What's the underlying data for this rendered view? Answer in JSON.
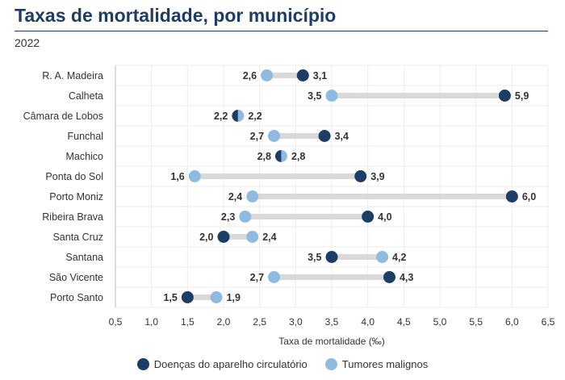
{
  "header": {
    "title": "Taxas de mortalidade, por município",
    "subtitle": "2022"
  },
  "colors": {
    "circulatory": "#1b3d66",
    "tumors": "#8fbbe0",
    "connector": "#d9d9d9",
    "grid": "#eeeeee"
  },
  "chart_data": {
    "type": "dumbbell",
    "xlabel": "Taxa de mortalidade (‰)",
    "xlim": [
      0.5,
      6.5
    ],
    "xticks": [
      0.5,
      1.0,
      1.5,
      2.0,
      2.5,
      3.0,
      3.5,
      4.0,
      4.5,
      5.0,
      5.5,
      6.0,
      6.5
    ],
    "xtick_labels": [
      "0,5",
      "1,0",
      "1,5",
      "2,0",
      "2,5",
      "3,0",
      "3,5",
      "4,0",
      "4,5",
      "5,0",
      "5,5",
      "6,0",
      "6,5"
    ],
    "grid": true,
    "legend_position": "bottom",
    "categories": [
      "R. A. Madeira",
      "Calheta",
      "Câmara de Lobos",
      "Funchal",
      "Machico",
      "Ponta do Sol",
      "Porto Moniz",
      "Ribeira Brava",
      "Santa Cruz",
      "Santana",
      "São Vicente",
      "Porto Santo"
    ],
    "series": [
      {
        "name": "Doenças do aparelho circulatório",
        "values": [
          3.1,
          5.9,
          2.2,
          3.4,
          2.8,
          3.9,
          6.0,
          4.0,
          2.0,
          3.5,
          4.3,
          1.5
        ],
        "labels": [
          "3,1",
          "5,9",
          "2,2",
          "3,4",
          "2,8",
          "3,9",
          "6,0",
          "4,0",
          "2,0",
          "3,5",
          "4,3",
          "1,5"
        ]
      },
      {
        "name": "Tumores malignos",
        "values": [
          2.6,
          3.5,
          2.2,
          2.7,
          2.8,
          1.6,
          2.4,
          2.3,
          2.4,
          4.2,
          2.7,
          1.9
        ],
        "labels": [
          "2,6",
          "3,5",
          "2,2",
          "2,7",
          "2,8",
          "1,6",
          "2,4",
          "2,3",
          "2,4",
          "4,2",
          "2,7",
          "1,9"
        ]
      }
    ]
  }
}
